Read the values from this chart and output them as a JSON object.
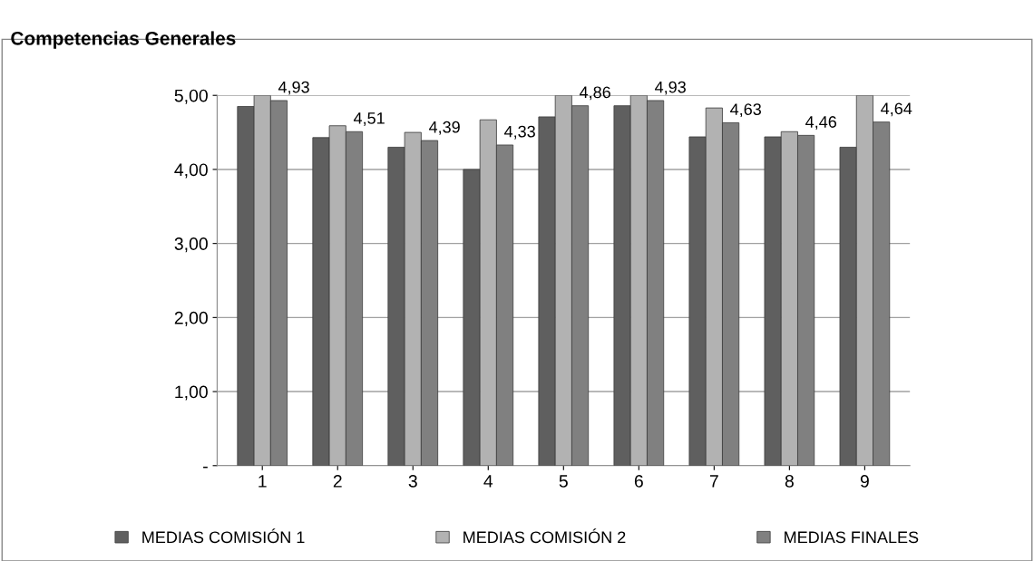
{
  "chart_data": {
    "type": "bar",
    "title": "Competencias Generales",
    "categories": [
      "1",
      "2",
      "3",
      "4",
      "5",
      "6",
      "7",
      "8",
      "9"
    ],
    "series": [
      {
        "name": "MEDIAS COMISIÓN 1",
        "color": "#5f5f5f",
        "values": [
          4.85,
          4.43,
          4.3,
          4.0,
          4.71,
          4.86,
          4.44,
          4.44,
          4.3
        ]
      },
      {
        "name": "MEDIAS COMISIÓN 2",
        "color": "#b2b2b2",
        "values": [
          5.0,
          4.59,
          4.5,
          4.67,
          5.0,
          5.0,
          4.83,
          4.51,
          5.0
        ]
      },
      {
        "name": "MEDIAS FINALES",
        "color": "#808080",
        "values": [
          4.93,
          4.51,
          4.39,
          4.33,
          4.86,
          4.93,
          4.63,
          4.46,
          4.64
        ],
        "value_labels": [
          "4,93",
          "4,51",
          "4,39",
          "4,33",
          "4,86",
          "4,93",
          "4,63",
          "4,46",
          "4,64"
        ]
      }
    ],
    "ylim": [
      0,
      5
    ],
    "yticks": [
      {
        "value": 0,
        "label": "-"
      },
      {
        "value": 1,
        "label": "1,00"
      },
      {
        "value": 2,
        "label": "2,00"
      },
      {
        "value": 3,
        "label": "3,00"
      },
      {
        "value": 4,
        "label": "4,00"
      },
      {
        "value": 5,
        "label": "5,00"
      }
    ],
    "grid": "y",
    "legend": "bottom"
  }
}
